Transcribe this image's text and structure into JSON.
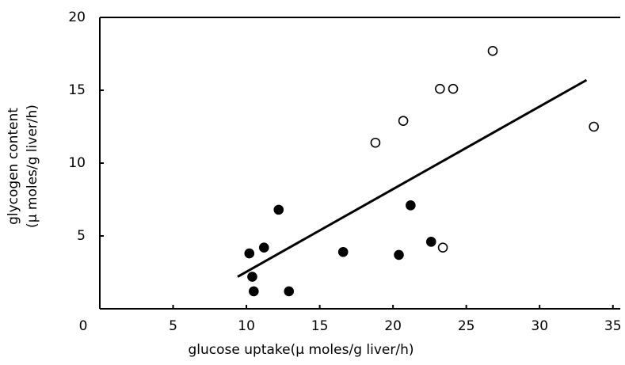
{
  "chart_data": {
    "type": "scatter",
    "x_label": "glucose uptake(μ moles/g liver/h)",
    "y_label": [
      "glycogen content",
      "(μ moles/g liver/h)"
    ],
    "xlim": [
      0,
      35.5
    ],
    "ylim": [
      0,
      20
    ],
    "xticks": [
      0,
      5,
      10,
      15,
      20,
      25,
      30,
      35
    ],
    "yticks": [
      5,
      10,
      15,
      20
    ],
    "series": [
      {
        "color": "#000000",
        "filled": true,
        "x": [
          10.2,
          10.4,
          10.5,
          11.2,
          12.2,
          12.9,
          16.6,
          20.4,
          21.2,
          22.6
        ],
        "y": [
          3.8,
          2.2,
          1.2,
          4.2,
          6.8,
          1.2,
          3.9,
          3.7,
          7.1,
          4.6
        ]
      },
      {
        "color": "#000000",
        "filled": false,
        "x": [
          18.8,
          20.7,
          23.2,
          24.1,
          23.4,
          26.8,
          33.7
        ],
        "y": [
          11.4,
          12.9,
          15.1,
          15.1,
          4.2,
          17.7,
          12.5
        ]
      }
    ],
    "fit": {
      "x": [
        9.4,
        33.2
      ],
      "y": [
        2.2,
        15.7
      ]
    }
  }
}
